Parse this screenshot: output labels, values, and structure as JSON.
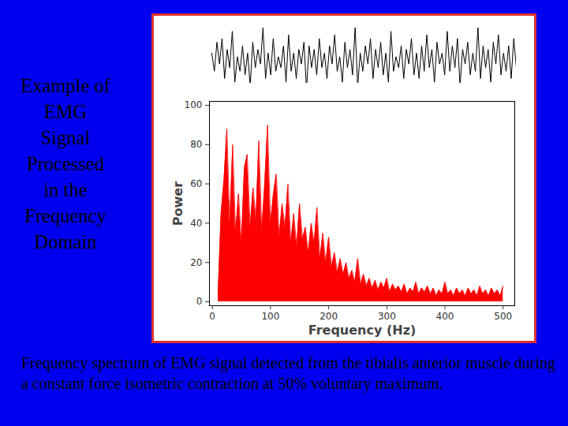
{
  "title": "Example of EMG Signal Processed in the Frequency Domain",
  "caption": "Frequency spectrum of EMG signal detected from the tibialis anterior muscle during a constant force isometric contraction at 50% voluntary maximum.",
  "chart_data": [
    {
      "type": "line",
      "color": "#000000",
      "tick_labels": false,
      "ylim": [
        -1,
        1
      ],
      "values": [
        0.2,
        -0.3,
        0.5,
        -0.1,
        0.6,
        -0.5,
        0.3,
        -0.2,
        0.8,
        -0.6,
        0.1,
        -0.3,
        0.4,
        -0.4,
        0.2,
        -0.7,
        0.5,
        -0.2,
        0.3,
        -0.1,
        0.9,
        -0.5,
        0.2,
        -0.4,
        0.6,
        -0.3,
        0.1,
        -0.2,
        0.4,
        -0.6,
        0.7,
        -0.3,
        0.2,
        -0.5,
        0.3,
        -0.1,
        0.5,
        -0.8,
        0.4,
        -0.2,
        0.3,
        -0.4,
        0.6,
        -0.2,
        0.2,
        -0.5,
        0.4,
        -0.1,
        0.7,
        -0.3,
        0.1,
        -0.6,
        0.5,
        -0.2,
        0.3,
        -0.4,
        0.9,
        -0.7,
        0.2,
        -0.3,
        0.4,
        -0.1,
        0.6,
        -0.5,
        0.3,
        -0.2,
        0.5,
        -0.4,
        0.2,
        -0.6,
        0.8,
        -0.3,
        0.1,
        -0.2,
        0.4,
        -0.5,
        0.3,
        -0.1,
        0.6,
        -0.4,
        0.2,
        -0.5,
        0.4,
        -0.3,
        0.7,
        -0.2,
        0.3,
        -0.6,
        0.5,
        -0.1,
        0.2,
        -0.4,
        0.8,
        -0.3,
        0.4,
        -0.2,
        0.6,
        -0.7,
        0.3,
        -0.1,
        0.5,
        -0.4,
        0.2,
        -0.3,
        0.9,
        -0.5,
        0.4,
        -0.2,
        0.3,
        -0.6,
        0.5,
        -0.1,
        0.7,
        -0.4,
        0.2,
        -0.3,
        0.4,
        -0.5,
        0.6,
        -0.2
      ]
    },
    {
      "type": "area",
      "color": "#ff0000",
      "xlabel": "Frequency (Hz)",
      "ylabel": "Power",
      "xlim": [
        -5,
        520
      ],
      "ylim": [
        -2,
        102
      ],
      "xticks": [
        0,
        100,
        200,
        300,
        400,
        500
      ],
      "yticks": [
        0,
        20,
        40,
        60,
        80,
        100
      ],
      "x": [
        10,
        15,
        20,
        25,
        30,
        35,
        40,
        45,
        50,
        55,
        60,
        65,
        70,
        75,
        80,
        85,
        90,
        95,
        100,
        105,
        110,
        115,
        120,
        125,
        130,
        135,
        140,
        145,
        150,
        155,
        160,
        165,
        170,
        175,
        180,
        185,
        190,
        195,
        200,
        205,
        210,
        215,
        220,
        225,
        230,
        235,
        240,
        245,
        250,
        255,
        260,
        265,
        270,
        275,
        280,
        285,
        290,
        295,
        300,
        305,
        310,
        315,
        320,
        325,
        330,
        335,
        340,
        345,
        350,
        355,
        360,
        365,
        370,
        375,
        380,
        385,
        390,
        395,
        400,
        405,
        410,
        415,
        420,
        425,
        430,
        435,
        440,
        445,
        450,
        455,
        460,
        465,
        470,
        475,
        480,
        485,
        490,
        495,
        500
      ],
      "values": [
        5,
        45,
        62,
        88,
        40,
        80,
        35,
        55,
        30,
        68,
        75,
        38,
        58,
        42,
        82,
        36,
        60,
        90,
        40,
        55,
        65,
        33,
        50,
        38,
        60,
        30,
        45,
        28,
        50,
        32,
        38,
        25,
        40,
        30,
        48,
        22,
        35,
        20,
        33,
        18,
        25,
        15,
        22,
        14,
        20,
        12,
        16,
        10,
        22,
        9,
        14,
        8,
        12,
        7,
        11,
        6,
        10,
        7,
        12,
        5,
        9,
        6,
        8,
        5,
        9,
        4,
        7,
        5,
        10,
        4,
        7,
        5,
        8,
        4,
        7,
        3,
        6,
        4,
        10,
        4,
        6,
        3,
        7,
        4,
        6,
        3,
        7,
        4,
        6,
        3,
        8,
        4,
        6,
        3,
        7,
        4,
        6,
        3,
        8
      ]
    }
  ]
}
